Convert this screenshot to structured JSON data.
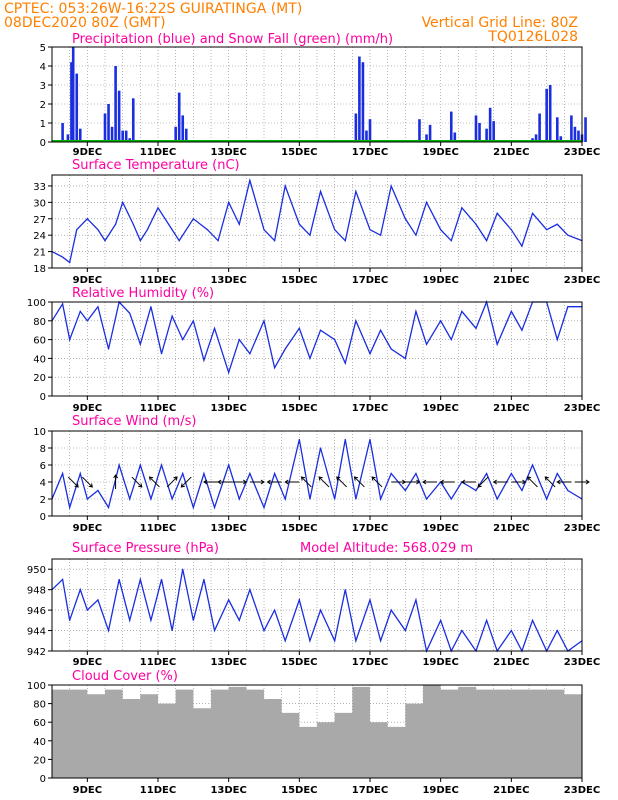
{
  "header": {
    "line1": "CPTEC:   053:26W-16:22S   GUIRATINGA (MT)",
    "line2": "08DEC2020 80Z (GMT)",
    "grid_note": "Vertical Grid Line: 80Z",
    "code": "TQ0126L028"
  },
  "x_ticks": [
    "9DEC",
    "11DEC",
    "13DEC",
    "15DEC",
    "17DEC",
    "19DEC",
    "21DEC",
    "23DEC"
  ],
  "colors": {
    "line": "#1a2ee0",
    "snow": "#00b000",
    "cloud": "#a9a9a9",
    "arrow": "#000000",
    "title": "#ff00a0",
    "header": "#ff8000"
  },
  "chart_data": [
    {
      "id": "precip",
      "type": "bar",
      "title": "Precipitation (blue) and Snow Fall (green) (mm/h)",
      "ylim": [
        0,
        5
      ],
      "yticks": [
        0,
        1,
        2,
        3,
        4,
        5
      ],
      "x": [
        8.3,
        8.45,
        8.55,
        8.6,
        8.7,
        8.8,
        9.5,
        9.6,
        9.7,
        9.8,
        9.9,
        10.0,
        10.1,
        10.2,
        10.3,
        11.5,
        11.6,
        11.7,
        11.8,
        16.6,
        16.7,
        16.8,
        16.9,
        17.0,
        18.4,
        18.6,
        18.7,
        19.3,
        19.4,
        20.0,
        20.1,
        20.3,
        20.4,
        20.5,
        21.6,
        21.7,
        21.8,
        22.0,
        22.1,
        22.3,
        22.4,
        22.7,
        22.8,
        22.9,
        23.0,
        23.1
      ],
      "values": [
        1.0,
        0.4,
        4.2,
        5.0,
        3.6,
        0.7,
        1.5,
        2.0,
        0.8,
        4.0,
        2.7,
        0.6,
        0.6,
        0.2,
        2.3,
        0.8,
        2.6,
        1.4,
        0.7,
        1.5,
        4.5,
        4.2,
        0.6,
        1.2,
        1.2,
        0.4,
        0.9,
        1.6,
        0.5,
        1.4,
        1.0,
        0.7,
        1.8,
        1.1,
        0.2,
        0.4,
        1.5,
        2.8,
        3.0,
        1.3,
        0.3,
        1.4,
        0.8,
        0.6,
        0.4,
        1.3
      ],
      "snow": 0
    },
    {
      "id": "temp",
      "type": "line",
      "title": "Surface Temperature (nC)",
      "ylim": [
        18,
        35
      ],
      "yticks": [
        18,
        21,
        24,
        27,
        30,
        33
      ],
      "x": [
        8.0,
        8.3,
        8.5,
        8.7,
        9.0,
        9.3,
        9.5,
        9.8,
        10.0,
        10.3,
        10.5,
        10.7,
        11.0,
        11.3,
        11.6,
        12.0,
        12.4,
        12.7,
        13.0,
        13.3,
        13.6,
        14.0,
        14.3,
        14.6,
        15.0,
        15.3,
        15.6,
        16.0,
        16.3,
        16.6,
        17.0,
        17.3,
        17.6,
        18.0,
        18.3,
        18.6,
        19.0,
        19.3,
        19.6,
        20.0,
        20.3,
        20.6,
        21.0,
        21.3,
        21.6,
        22.0,
        22.3,
        22.6,
        23.0
      ],
      "values": [
        21,
        20,
        19,
        25,
        27,
        25,
        23,
        26,
        30,
        26,
        23,
        25,
        29,
        26,
        23,
        27,
        25,
        23,
        30,
        26,
        34,
        25,
        23,
        33,
        26,
        24,
        32,
        25,
        23,
        32,
        25,
        24,
        33,
        27,
        24,
        30,
        25,
        23,
        29,
        26,
        23,
        28,
        25,
        22,
        28,
        25,
        26,
        24,
        23
      ]
    },
    {
      "id": "rh",
      "type": "line",
      "title": "Relative Humidity (%)",
      "ylim": [
        0,
        100
      ],
      "yticks": [
        0,
        20,
        40,
        60,
        80,
        100
      ],
      "x": [
        8.0,
        8.3,
        8.5,
        8.8,
        9.0,
        9.3,
        9.6,
        9.9,
        10.2,
        10.5,
        10.8,
        11.1,
        11.4,
        11.7,
        12.0,
        12.3,
        12.6,
        13.0,
        13.3,
        13.6,
        14.0,
        14.3,
        14.6,
        15.0,
        15.3,
        15.6,
        16.0,
        16.3,
        16.6,
        17.0,
        17.3,
        17.6,
        18.0,
        18.3,
        18.6,
        19.0,
        19.3,
        19.6,
        20.0,
        20.3,
        20.6,
        21.0,
        21.3,
        21.6,
        22.0,
        22.3,
        22.6,
        23.0
      ],
      "values": [
        80,
        98,
        60,
        90,
        80,
        95,
        50,
        100,
        88,
        55,
        95,
        45,
        85,
        60,
        80,
        38,
        72,
        25,
        60,
        45,
        80,
        30,
        50,
        72,
        40,
        70,
        60,
        35,
        80,
        45,
        70,
        50,
        40,
        90,
        55,
        80,
        60,
        90,
        72,
        100,
        55,
        90,
        70,
        100,
        100,
        60,
        95,
        95
      ]
    },
    {
      "id": "wind",
      "type": "line",
      "title": "Surface Wind (m/s)",
      "ylim": [
        0,
        10
      ],
      "yticks": [
        0,
        2,
        4,
        6,
        8,
        10
      ],
      "x": [
        8.0,
        8.3,
        8.5,
        8.8,
        9.0,
        9.3,
        9.6,
        9.9,
        10.2,
        10.5,
        10.8,
        11.1,
        11.4,
        11.7,
        12.0,
        12.3,
        12.6,
        13.0,
        13.3,
        13.6,
        14.0,
        14.3,
        14.6,
        15.0,
        15.3,
        15.6,
        16.0,
        16.3,
        16.6,
        17.0,
        17.3,
        17.6,
        18.0,
        18.3,
        18.6,
        19.0,
        19.3,
        19.6,
        20.0,
        20.3,
        20.6,
        21.0,
        21.3,
        21.6,
        22.0,
        22.3,
        22.6,
        23.0
      ],
      "values": [
        2,
        5,
        1,
        5,
        2,
        3,
        1,
        6,
        2,
        6,
        2,
        6,
        2,
        5,
        1,
        5,
        1,
        6,
        2,
        5,
        1,
        5,
        2,
        9,
        2,
        8,
        2,
        9,
        2,
        9,
        2,
        5,
        3,
        5,
        2,
        4,
        2,
        4,
        3,
        5,
        2,
        5,
        3,
        6,
        2,
        5,
        3,
        2
      ],
      "arrows": {
        "x": [
          8.6,
          9.0,
          9.8,
          10.4,
          10.9,
          11.4,
          11.8,
          12.5,
          12.9,
          13.3,
          13.8,
          14.3,
          14.8,
          15.2,
          15.7,
          16.2,
          16.7,
          17.2,
          17.8,
          18.2,
          18.7,
          19.2,
          19.8,
          20.2,
          20.7,
          21.2,
          21.6,
          22.1,
          22.5,
          23.0
        ],
        "u": [
          1,
          1,
          0,
          1,
          -1,
          1,
          -1,
          -1,
          -1,
          1,
          1,
          -1,
          -1,
          -1,
          -1,
          -1,
          -1,
          -1,
          1,
          1,
          -1,
          -1,
          -1,
          -1,
          -1,
          1,
          -1,
          -1,
          -1,
          1
        ],
        "v": [
          -1,
          -1,
          1,
          -1,
          1,
          1,
          -1,
          0,
          0,
          0,
          0,
          0,
          0,
          1,
          1,
          1,
          1,
          1,
          0,
          0,
          0,
          0,
          0,
          -1,
          0,
          0,
          1,
          1,
          0,
          0
        ]
      }
    },
    {
      "id": "pres",
      "type": "line",
      "title": "Surface Pressure (hPa)",
      "note": "Model Altitude: 568.029 m",
      "ylim": [
        942,
        951
      ],
      "yticks": [
        942,
        944,
        946,
        948,
        950
      ],
      "x": [
        8.0,
        8.3,
        8.5,
        8.8,
        9.0,
        9.3,
        9.6,
        9.9,
        10.2,
        10.5,
        10.8,
        11.1,
        11.4,
        11.7,
        12.0,
        12.3,
        12.6,
        13.0,
        13.3,
        13.6,
        14.0,
        14.3,
        14.6,
        15.0,
        15.3,
        15.6,
        16.0,
        16.3,
        16.6,
        17.0,
        17.3,
        17.6,
        18.0,
        18.3,
        18.6,
        19.0,
        19.3,
        19.6,
        20.0,
        20.3,
        20.6,
        21.0,
        21.3,
        21.6,
        22.0,
        22.3,
        22.6,
        23.0
      ],
      "values": [
        948,
        949,
        945,
        948,
        946,
        947,
        944,
        949,
        945,
        949,
        945,
        949,
        944,
        950,
        945,
        949,
        944,
        947,
        945,
        948,
        944,
        946,
        943,
        947,
        943,
        946,
        943,
        948,
        943,
        947,
        943,
        946,
        944,
        947,
        942,
        945,
        942,
        944,
        942,
        945,
        942,
        944,
        942,
        945,
        942,
        944,
        942,
        943
      ]
    },
    {
      "id": "cloud",
      "type": "bar",
      "title": "Cloud Cover (%)",
      "ylim": [
        0,
        100
      ],
      "yticks": [
        0,
        20,
        40,
        60,
        80,
        100
      ],
      "x": [
        8.0,
        8.5,
        9.0,
        9.5,
        10.0,
        10.5,
        11.0,
        11.5,
        12.0,
        12.5,
        13.0,
        13.5,
        14.0,
        14.5,
        15.0,
        15.5,
        16.0,
        16.5,
        17.0,
        17.5,
        18.0,
        18.5,
        19.0,
        19.5,
        20.0,
        20.5,
        21.0,
        21.5,
        22.0,
        22.5,
        23.0
      ],
      "values": [
        95,
        95,
        90,
        95,
        85,
        90,
        80,
        95,
        75,
        95,
        98,
        95,
        85,
        70,
        55,
        60,
        70,
        98,
        60,
        55,
        80,
        100,
        95,
        98,
        95,
        95,
        95,
        95,
        95,
        90,
        95
      ]
    }
  ]
}
